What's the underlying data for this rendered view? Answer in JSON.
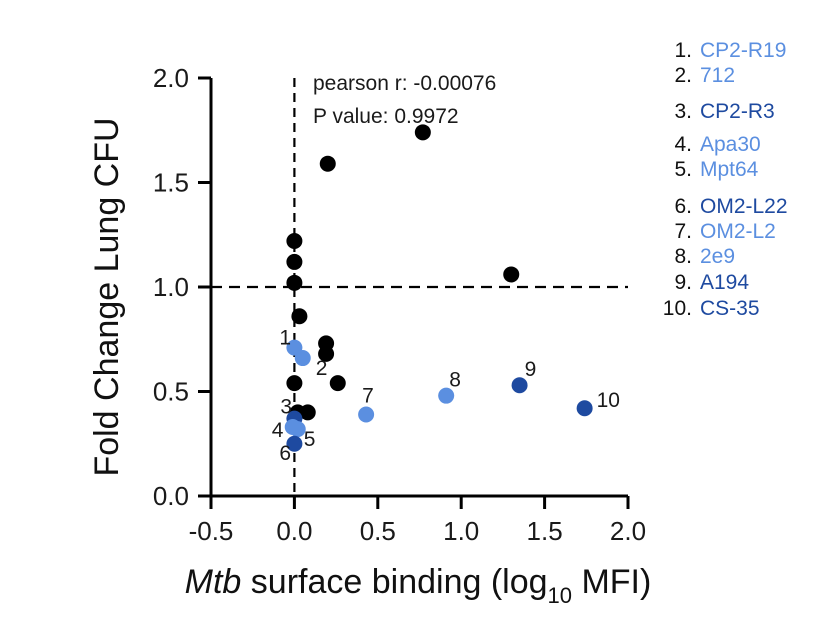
{
  "chart_data": {
    "type": "scatter",
    "xlabel_italic": "Mtb",
    "xlabel_main": " surface binding (log",
    "xlabel_sub": "10",
    "xlabel_end": " MFI)",
    "ylabel": "Fold Change Lung CFU",
    "xlim": [
      -0.5,
      2.0
    ],
    "ylim": [
      0.0,
      2.0
    ],
    "xticks": [
      -0.5,
      0.0,
      0.5,
      1.0,
      1.5,
      2.0
    ],
    "yticks": [
      0.0,
      0.5,
      1.0,
      1.5,
      2.0
    ],
    "xtick_labels": [
      "-0.5",
      "0.0",
      "0.5",
      "1.0",
      "1.5",
      "2.0"
    ],
    "ytick_labels": [
      "0.0",
      "0.5",
      "1.0",
      "1.5",
      "2.0"
    ],
    "reference_lines": {
      "x": 0.0,
      "y": 1.0
    },
    "annotation_line1": "pearson r: -0.00076",
    "annotation_line2": "P value: 0.9972",
    "colors": {
      "black": "#000000",
      "light_blue": "#5b8fe0",
      "dark_blue": "#1e4aa0"
    },
    "black_points": [
      {
        "x": 0.0,
        "y": 1.22
      },
      {
        "x": 0.0,
        "y": 1.12
      },
      {
        "x": 0.0,
        "y": 1.02
      },
      {
        "x": 0.03,
        "y": 0.86
      },
      {
        "x": 0.2,
        "y": 1.59
      },
      {
        "x": 0.77,
        "y": 1.74
      },
      {
        "x": 1.3,
        "y": 1.06
      },
      {
        "x": 0.19,
        "y": 0.73
      },
      {
        "x": 0.19,
        "y": 0.68
      },
      {
        "x": 0.26,
        "y": 0.54
      },
      {
        "x": 0.0,
        "y": 0.54
      },
      {
        "x": 0.08,
        "y": 0.4
      },
      {
        "x": 0.02,
        "y": 0.4
      }
    ],
    "numbered_points": [
      {
        "label": "1",
        "x": 0.0,
        "y": 0.71,
        "color": "light_blue"
      },
      {
        "label": "2",
        "x": 0.05,
        "y": 0.66,
        "color": "light_blue"
      },
      {
        "label": "3",
        "x": 0.0,
        "y": 0.37,
        "color": "dark_blue"
      },
      {
        "label": "4",
        "x": -0.01,
        "y": 0.33,
        "color": "light_blue"
      },
      {
        "label": "5",
        "x": 0.02,
        "y": 0.32,
        "color": "light_blue"
      },
      {
        "label": "6",
        "x": 0.0,
        "y": 0.25,
        "color": "dark_blue"
      },
      {
        "label": "7",
        "x": 0.43,
        "y": 0.39,
        "color": "light_blue"
      },
      {
        "label": "8",
        "x": 0.91,
        "y": 0.48,
        "color": "light_blue"
      },
      {
        "label": "9",
        "x": 1.35,
        "y": 0.53,
        "color": "dark_blue"
      },
      {
        "label": "10",
        "x": 1.74,
        "y": 0.42,
        "color": "dark_blue"
      }
    ]
  },
  "legend": [
    {
      "num": "1.",
      "name": "CP2-R19",
      "color": "#5b8fe0"
    },
    {
      "num": "2.",
      "name": "712",
      "color": "#5b8fe0"
    },
    {
      "num": "3.",
      "name": "CP2-R3",
      "color": "#1e4aa0"
    },
    {
      "num": "4.",
      "name": "Apa30",
      "color": "#5b8fe0"
    },
    {
      "num": "5.",
      "name": "Mpt64",
      "color": "#5b8fe0"
    },
    {
      "num": "6.",
      "name": "OM2-L22",
      "color": "#1e4aa0"
    },
    {
      "num": "7.",
      "name": "OM2-L2",
      "color": "#5b8fe0"
    },
    {
      "num": "8.",
      "name": "2e9",
      "color": "#5b8fe0"
    },
    {
      "num": "9.",
      "name": "A194",
      "color": "#1e4aa0"
    },
    {
      "num": "10.",
      "name": "CS-35",
      "color": "#1e4aa0"
    }
  ]
}
